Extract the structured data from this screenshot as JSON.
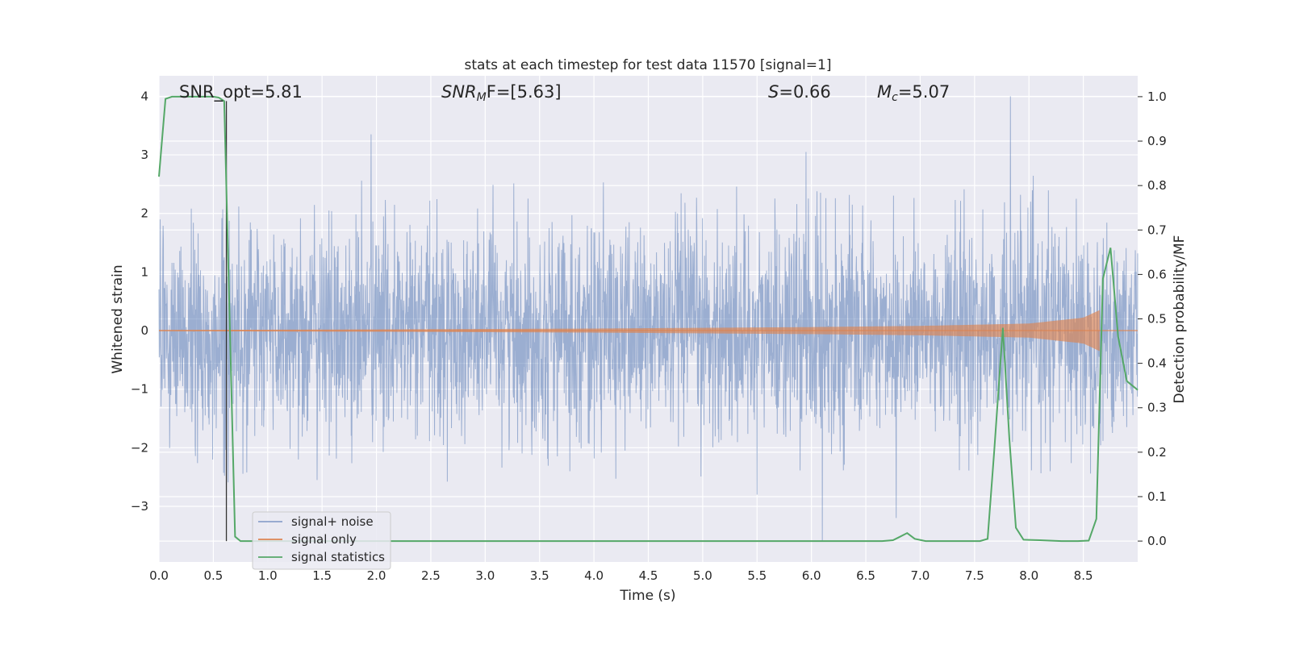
{
  "chart_data": {
    "type": "line",
    "title": "stats at each timestep for test data 11570 [signal=1]",
    "xlabel": "Time (s)",
    "ylabel_left": "Whitened strain",
    "ylabel_right": "Detection probability/MF",
    "xlim": [
      0.0,
      9.0
    ],
    "ylim_left": [
      -3.95,
      4.35
    ],
    "ylim_right": [
      -0.047,
      1.047
    ],
    "x_ticks": [
      "0.0",
      "0.5",
      "1.0",
      "1.5",
      "2.0",
      "2.5",
      "3.0",
      "3.5",
      "4.0",
      "4.5",
      "5.0",
      "5.5",
      "6.0",
      "6.5",
      "7.0",
      "7.5",
      "8.0",
      "8.5"
    ],
    "y_left_ticks": [
      "−3",
      "−2",
      "−1",
      "0",
      "1",
      "2",
      "3",
      "4"
    ],
    "y_right_ticks": [
      "0.0",
      "0.1",
      "0.2",
      "0.3",
      "0.4",
      "0.5",
      "0.6",
      "0.7",
      "0.8",
      "0.9",
      "1.0"
    ],
    "grid": true,
    "legend_position": "lower-left",
    "annotations": {
      "snr_opt": "SNR_opt=5.81",
      "snr_mf_sym": "SNR",
      "snr_mf_sub": "M",
      "snr_mf_rest": "F=[5.63]",
      "s_sym": "S",
      "s_rest": "=0.66",
      "mc_sym": "M",
      "mc_sub": "c",
      "mc_rest": "=5.07"
    },
    "vertical_marker_x": 0.62,
    "series": [
      {
        "name": "signal+ noise",
        "color": "#4c72b0",
        "envelope_note": "whitened strain, typically within about ±1.9 with peaks near 4 and −3.6",
        "notable_peaks": [
          {
            "x": 1.95,
            "y": 3.35
          },
          {
            "x": 5.95,
            "y": 3.05
          },
          {
            "x": 7.83,
            "y": 4.0
          },
          {
            "x": 6.1,
            "y": -3.6
          },
          {
            "x": 6.78,
            "y": -3.2
          },
          {
            "x": 5.5,
            "y": -2.8
          }
        ]
      },
      {
        "name": "signal only",
        "color": "#dd8452",
        "amplitude_points": [
          {
            "x": 0.0,
            "amp": 0.01
          },
          {
            "x": 2.0,
            "amp": 0.02
          },
          {
            "x": 4.0,
            "amp": 0.035
          },
          {
            "x": 6.0,
            "amp": 0.06
          },
          {
            "x": 7.0,
            "amp": 0.08
          },
          {
            "x": 8.0,
            "amp": 0.12
          },
          {
            "x": 8.5,
            "amp": 0.22
          },
          {
            "x": 8.65,
            "amp": 0.35
          },
          {
            "x": 8.7,
            "amp": 0.0
          }
        ]
      },
      {
        "name": "signal statistics",
        "color": "#55a868",
        "axis": "right",
        "x": [
          0.0,
          0.06,
          0.12,
          0.2,
          0.3,
          0.4,
          0.5,
          0.55,
          0.6,
          0.65,
          0.7,
          0.75,
          0.85,
          1.5,
          2.5,
          3.5,
          4.5,
          5.5,
          6.5,
          6.65,
          6.75,
          6.8,
          6.88,
          6.95,
          7.05,
          7.2,
          7.4,
          7.55,
          7.62,
          7.68,
          7.76,
          7.82,
          7.88,
          7.95,
          8.1,
          8.3,
          8.45,
          8.55,
          8.62,
          8.68,
          8.75,
          8.82,
          8.9,
          9.0
        ],
        "y": [
          0.82,
          0.995,
          1.0,
          1.0,
          1.0,
          1.0,
          1.0,
          0.998,
          0.99,
          0.5,
          0.01,
          0.0,
          0.0,
          0.0,
          0.0,
          0.0,
          0.0,
          0.0,
          0.0,
          0.0,
          0.002,
          0.008,
          0.018,
          0.005,
          0.0,
          0.0,
          0.0,
          0.0,
          0.005,
          0.2,
          0.48,
          0.23,
          0.03,
          0.003,
          0.002,
          0.0,
          0.0,
          0.001,
          0.05,
          0.59,
          0.66,
          0.46,
          0.36,
          0.34
        ]
      }
    ]
  }
}
